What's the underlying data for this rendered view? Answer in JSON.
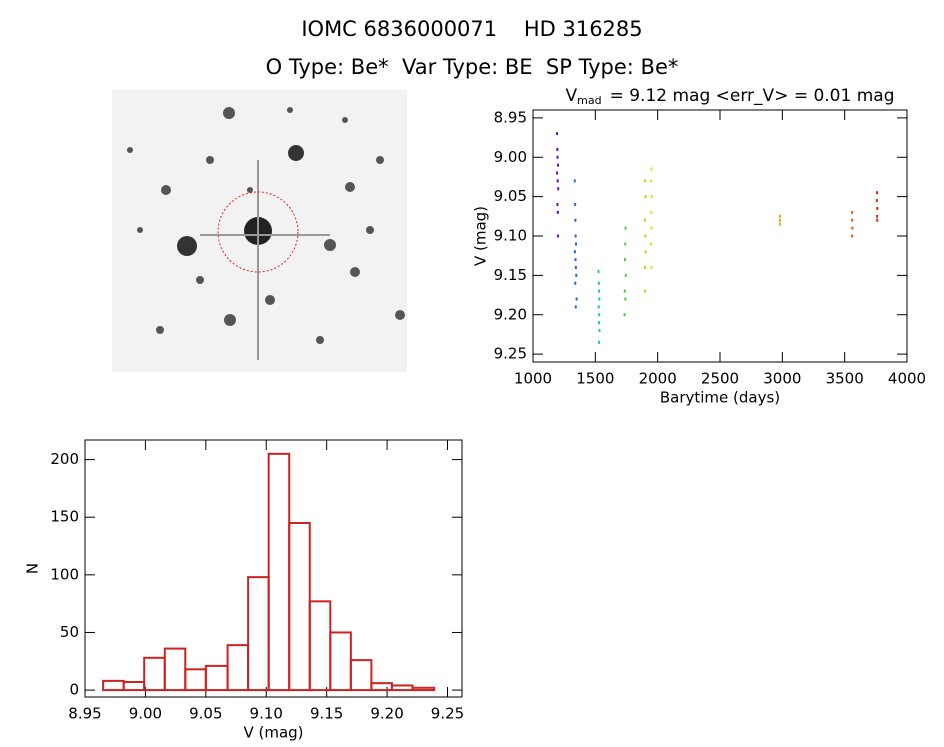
{
  "header": {
    "title": "IOMC 6836000071    HD 316285",
    "subtitle": "O Type: Be*  Var Type: BE  SP Type: Be*"
  },
  "chart_data": [
    {
      "type": "scatter",
      "title_parts": [
        "V",
        "mad",
        "= 9.12 mag <err_V> = 0.01 mag"
      ],
      "x_label": "Barytime (days)",
      "y_label": "V (mag)",
      "xlim": [
        1000,
        4000
      ],
      "xticks": [
        1000,
        1500,
        2000,
        2500,
        3000,
        3500,
        4000
      ],
      "ylim": [
        9.26,
        8.94
      ],
      "yticks": [
        8.95,
        {
          "value": 9.0,
          "label": "9.00"
        },
        9.05,
        {
          "value": 9.1,
          "label": "9.10"
        },
        9.15,
        {
          "value": 9.2,
          "label": "9.20"
        },
        9.25
      ],
      "series": [
        {
          "color": "#5b10b0",
          "x": [
            1192,
            1195,
            1197,
            1200,
            1193,
            1198,
            1202,
            1196,
            1199,
            1201
          ],
          "values": [
            8.97,
            8.99,
            9.0,
            9.01,
            9.02,
            9.03,
            9.04,
            9.06,
            9.07,
            9.1
          ]
        },
        {
          "color": "#1e6ad8",
          "x": [
            1335,
            1338,
            1340,
            1342,
            1345,
            1336,
            1341,
            1344,
            1347,
            1339,
            1350,
            1343
          ],
          "values": [
            9.03,
            9.06,
            9.08,
            9.1,
            9.11,
            9.12,
            9.13,
            9.14,
            9.15,
            9.16,
            9.18,
            9.19
          ]
        },
        {
          "color": "#10c8c0",
          "x": [
            1525,
            1528,
            1530,
            1532,
            1527,
            1531,
            1529,
            1533,
            1530
          ],
          "values": [
            9.145,
            9.16,
            9.17,
            9.18,
            9.19,
            9.2,
            9.21,
            9.22,
            9.235
          ]
        },
        {
          "color": "#40d040",
          "x": [
            1742,
            1740,
            1738,
            1744,
            1736,
            1741,
            1735
          ],
          "values": [
            9.09,
            9.11,
            9.13,
            9.15,
            9.17,
            9.18,
            9.2
          ]
        },
        {
          "color": "#a8e010",
          "x": [
            1900,
            1902,
            1898,
            1901,
            1903,
            1899,
            1900
          ],
          "values": [
            9.03,
            9.05,
            9.08,
            9.1,
            9.12,
            9.14,
            9.17
          ]
        },
        {
          "color": "#e0e020",
          "x": [
            1950,
            1948,
            1952,
            1949,
            1951,
            1947,
            1950
          ],
          "values": [
            9.015,
            9.03,
            9.05,
            9.07,
            9.09,
            9.11,
            9.14
          ]
        },
        {
          "color": "#e8a010",
          "x": [
            2980,
            2980,
            2980
          ],
          "values": [
            9.075,
            9.08,
            9.085
          ]
        },
        {
          "color": "#e06020",
          "x": [
            3560,
            3560,
            3562,
            3560
          ],
          "values": [
            9.07,
            9.08,
            9.09,
            9.1
          ]
        },
        {
          "color": "#c83018",
          "x": [
            3760,
            3758,
            3762,
            3760,
            3761
          ],
          "values": [
            9.045,
            9.055,
            9.065,
            9.075,
            9.08
          ]
        }
      ]
    },
    {
      "type": "histogram",
      "x_label": "V (mag)",
      "y_label": "N",
      "color": "#cc2222",
      "bins": [
        8.965,
        8.982,
        8.999,
        9.016,
        9.033,
        9.05,
        9.068,
        9.085,
        9.102,
        9.119,
        9.136,
        9.153,
        9.17,
        9.187,
        9.204,
        9.221,
        9.239
      ],
      "values": [
        8,
        7,
        28,
        36,
        18,
        21,
        39,
        98,
        205,
        145,
        77,
        50,
        26,
        6,
        4,
        2
      ],
      "xlim": [
        8.95,
        9.262
      ],
      "xticks": [
        8.95,
        {
          "value": 9.0,
          "label": "9.00"
        },
        9.05,
        {
          "value": 9.1,
          "label": "9.10"
        },
        9.15,
        {
          "value": 9.2,
          "label": "9.20"
        },
        9.25
      ],
      "ylim": [
        -6,
        217
      ],
      "yticks": [
        0,
        50,
        100,
        150,
        200
      ]
    }
  ]
}
